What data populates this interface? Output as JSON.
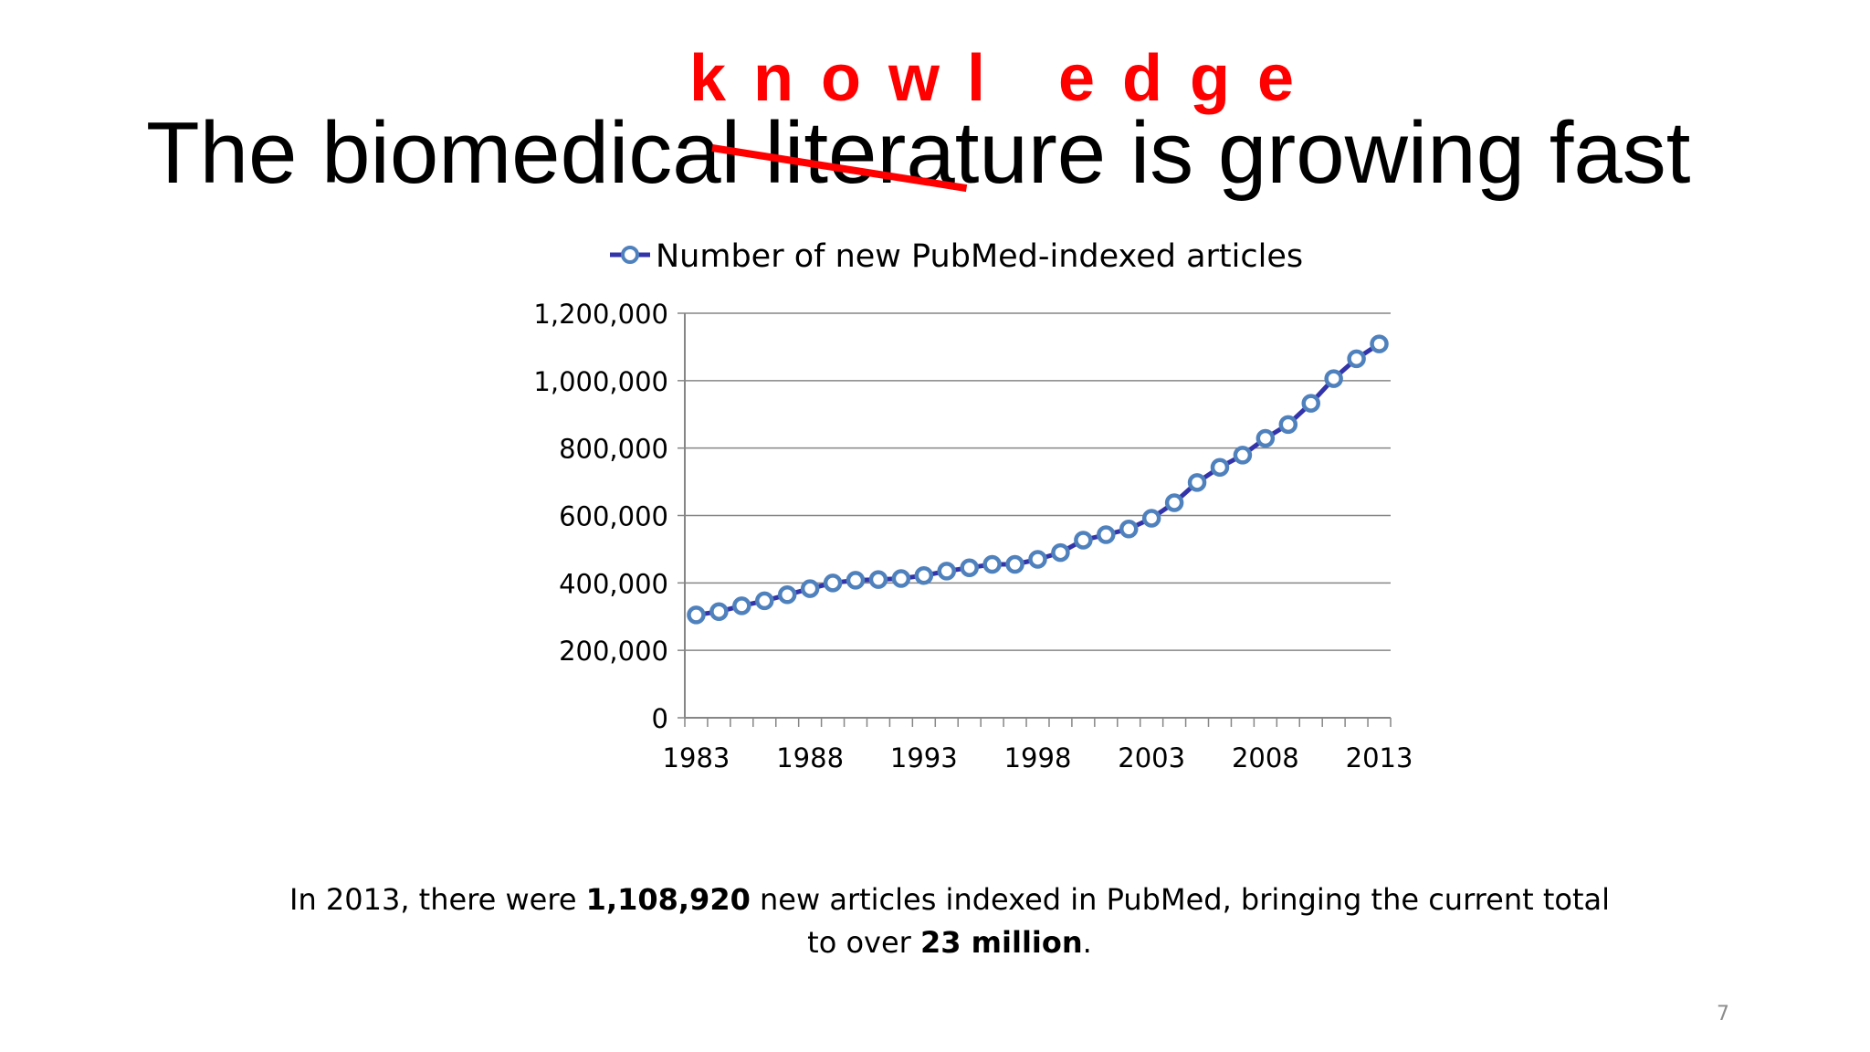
{
  "slide": {
    "title_text": "The biomedical literature is growing fast",
    "correction_word": "knowl edge",
    "footnote": {
      "part1": "In 2013, there were ",
      "bold1": "1,108,920",
      "part2": " new articles indexed in PubMed, bringing the current total",
      "part3": "to over ",
      "bold2": "23 million",
      "part4": "."
    },
    "page_number": "7"
  },
  "colors": {
    "correction": "#ff0000",
    "series_line": "#3333aa",
    "marker_fill": "#ffffff",
    "marker_stroke": "#4f81bd",
    "grid": "#868686"
  },
  "chart_data": {
    "type": "line",
    "title": "",
    "xlabel": "",
    "ylabel": "",
    "legend_position": "top",
    "grid": true,
    "ylim": [
      0,
      1200000
    ],
    "yticks": [
      0,
      200000,
      400000,
      600000,
      800000,
      1000000,
      1200000
    ],
    "ytick_labels": [
      "0",
      "200,000",
      "400,000",
      "600,000",
      "800,000",
      "1,000,000",
      "1,200,000"
    ],
    "xtick_labels": [
      "1983",
      "1988",
      "1993",
      "1998",
      "2003",
      "2008",
      "2013"
    ],
    "x": [
      1983,
      1984,
      1985,
      1986,
      1987,
      1988,
      1989,
      1990,
      1991,
      1992,
      1993,
      1994,
      1995,
      1996,
      1997,
      1998,
      1999,
      2000,
      2001,
      2002,
      2003,
      2004,
      2005,
      2006,
      2007,
      2008,
      2009,
      2010,
      2011,
      2012,
      2013
    ],
    "series": [
      {
        "name": "Number of new PubMed-indexed articles",
        "marker": "circle",
        "values": [
          305000,
          315000,
          332000,
          347000,
          365000,
          383000,
          400000,
          408000,
          410000,
          413000,
          422000,
          435000,
          445000,
          455000,
          455000,
          470000,
          490000,
          527000,
          543000,
          560000,
          592000,
          638000,
          698000,
          743000,
          779000,
          829000,
          870000,
          933000,
          1006000,
          1065000,
          1108920
        ]
      }
    ]
  }
}
